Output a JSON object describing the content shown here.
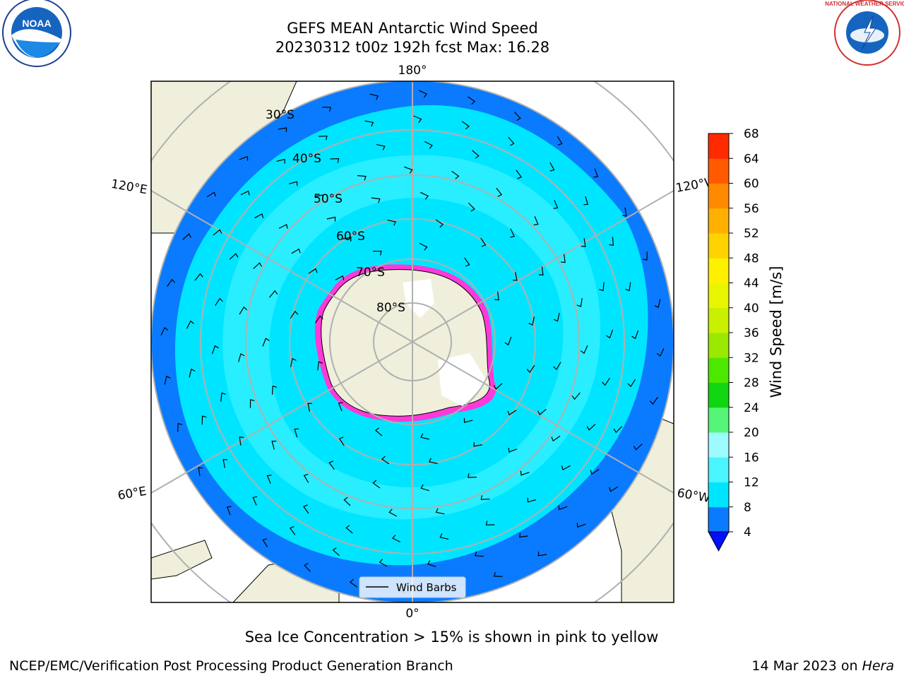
{
  "header": {
    "title_line1": "GEFS MEAN Antarctic Wind Speed",
    "title_line2": "20230312 t00z 192h fcst   Max: 16.28"
  },
  "logos": {
    "left": "NOAA",
    "right": "NATIONAL WEATHER SERVICE"
  },
  "map": {
    "lon_labels": {
      "top": "180°",
      "bottom": "0°",
      "left_upper": "120°E",
      "left_lower": "60°E",
      "right_upper": "120°W",
      "right_lower": "60°W"
    },
    "lat_labels": [
      "30°S",
      "40°S",
      "50°S",
      "60°S",
      "70°S",
      "80°S"
    ],
    "legend_label": "Wind Barbs"
  },
  "colorbar": {
    "label": "Wind Speed [m/s]",
    "ticks": [
      "4",
      "8",
      "12",
      "16",
      "20",
      "24",
      "28",
      "32",
      "36",
      "40",
      "44",
      "48",
      "52",
      "56",
      "60",
      "64",
      "68"
    ],
    "colors": [
      "#0a7bff",
      "#00e5ff",
      "#4af5ff",
      "#9cfbff",
      "#55f57a",
      "#0fd610",
      "#4ce800",
      "#9be800",
      "#c8f000",
      "#e8f500",
      "#fff000",
      "#ffd200",
      "#ffb000",
      "#ff8a00",
      "#ff5a00",
      "#ff2a00"
    ],
    "under_color": "#0010ff"
  },
  "caption": "Sea Ice Concentration > 15% is shown in pink to yellow",
  "footer": {
    "left": "NCEP/EMC/Verification Post Processing Product Generation Branch",
    "right_date": "14 Mar 2023 on ",
    "right_host": "Hera"
  }
}
